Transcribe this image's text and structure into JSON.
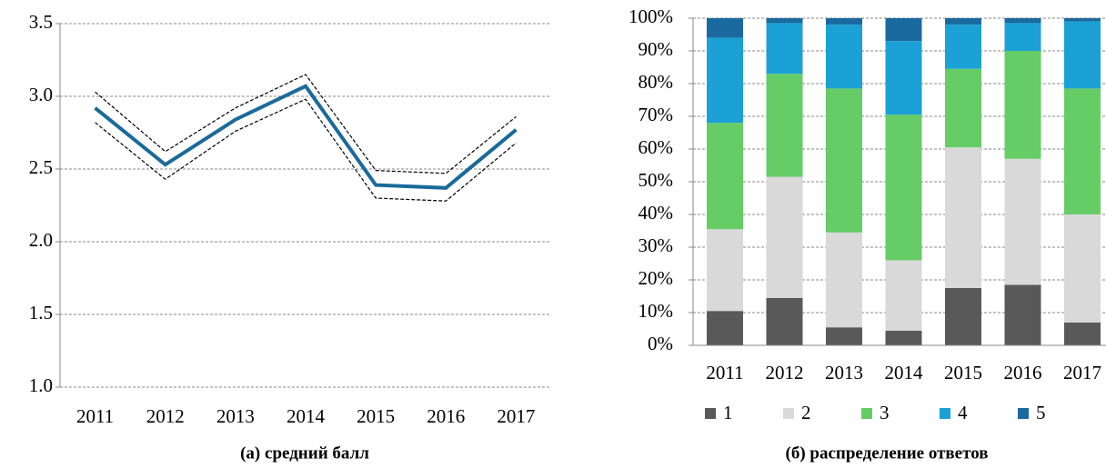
{
  "chart_data": [
    {
      "type": "line",
      "title": "(а) средний балл",
      "categories": [
        "2011",
        "2012",
        "2013",
        "2014",
        "2015",
        "2016",
        "2017"
      ],
      "series": [
        {
          "color": "#000000",
          "line_style": "dashed",
          "values": [
            3.03,
            2.62,
            2.92,
            3.15,
            2.49,
            2.47,
            2.86
          ]
        },
        {
          "color": "#1a6a9a",
          "line_style": "solid",
          "values": [
            2.92,
            2.53,
            2.84,
            3.07,
            2.39,
            2.37,
            2.77
          ]
        },
        {
          "color": "#000000",
          "line_style": "dashed",
          "values": [
            2.82,
            2.43,
            2.76,
            2.98,
            2.3,
            2.28,
            2.68
          ]
        }
      ],
      "ylim": [
        1.0,
        3.5
      ],
      "yticks": [
        {
          "value": 1.0,
          "label": "1.0"
        },
        {
          "value": 1.5,
          "label": "1.5"
        },
        {
          "value": 2.0,
          "label": "2.0"
        },
        {
          "value": 2.5,
          "label": "2.5"
        },
        {
          "value": 3.0,
          "label": "3.0"
        },
        {
          "value": 3.5,
          "label": "3.5"
        }
      ],
      "grid": true
    },
    {
      "type": "stacked_bar",
      "title": "(б) распределение ответов",
      "categories": [
        "2011",
        "2012",
        "2013",
        "2014",
        "2015",
        "2016",
        "2017"
      ],
      "series": [
        {
          "name": "1",
          "color": "#595959",
          "values": [
            10.5,
            14.5,
            5.5,
            4.5,
            17.5,
            18.5,
            7
          ]
        },
        {
          "name": "2",
          "color": "#d9d9d9",
          "values": [
            25,
            37,
            29,
            21.5,
            43,
            38.5,
            33
          ]
        },
        {
          "name": "3",
          "color": "#66cc66",
          "values": [
            32.5,
            31.5,
            44,
            44.5,
            24,
            33,
            38.5
          ]
        },
        {
          "name": "4",
          "color": "#1ba1d6",
          "values": [
            26,
            15.5,
            19.5,
            22.5,
            13.5,
            8.5,
            20.5
          ]
        },
        {
          "name": "5",
          "color": "#1a6aa0",
          "values": [
            6,
            1.5,
            2,
            7,
            2,
            1.5,
            1
          ]
        }
      ],
      "ylim": [
        0,
        100
      ],
      "yticks": [
        {
          "value": 0,
          "label": "0%"
        },
        {
          "value": 10,
          "label": "10%"
        },
        {
          "value": 20,
          "label": "20%"
        },
        {
          "value": 30,
          "label": "30%"
        },
        {
          "value": 40,
          "label": "40%"
        },
        {
          "value": 50,
          "label": "50%"
        },
        {
          "value": 60,
          "label": "60%"
        },
        {
          "value": 70,
          "label": "70%"
        },
        {
          "value": 80,
          "label": "80%"
        },
        {
          "value": 90,
          "label": "90%"
        },
        {
          "value": 100,
          "label": "100%"
        }
      ],
      "grid": true,
      "legend": "bottom"
    }
  ]
}
